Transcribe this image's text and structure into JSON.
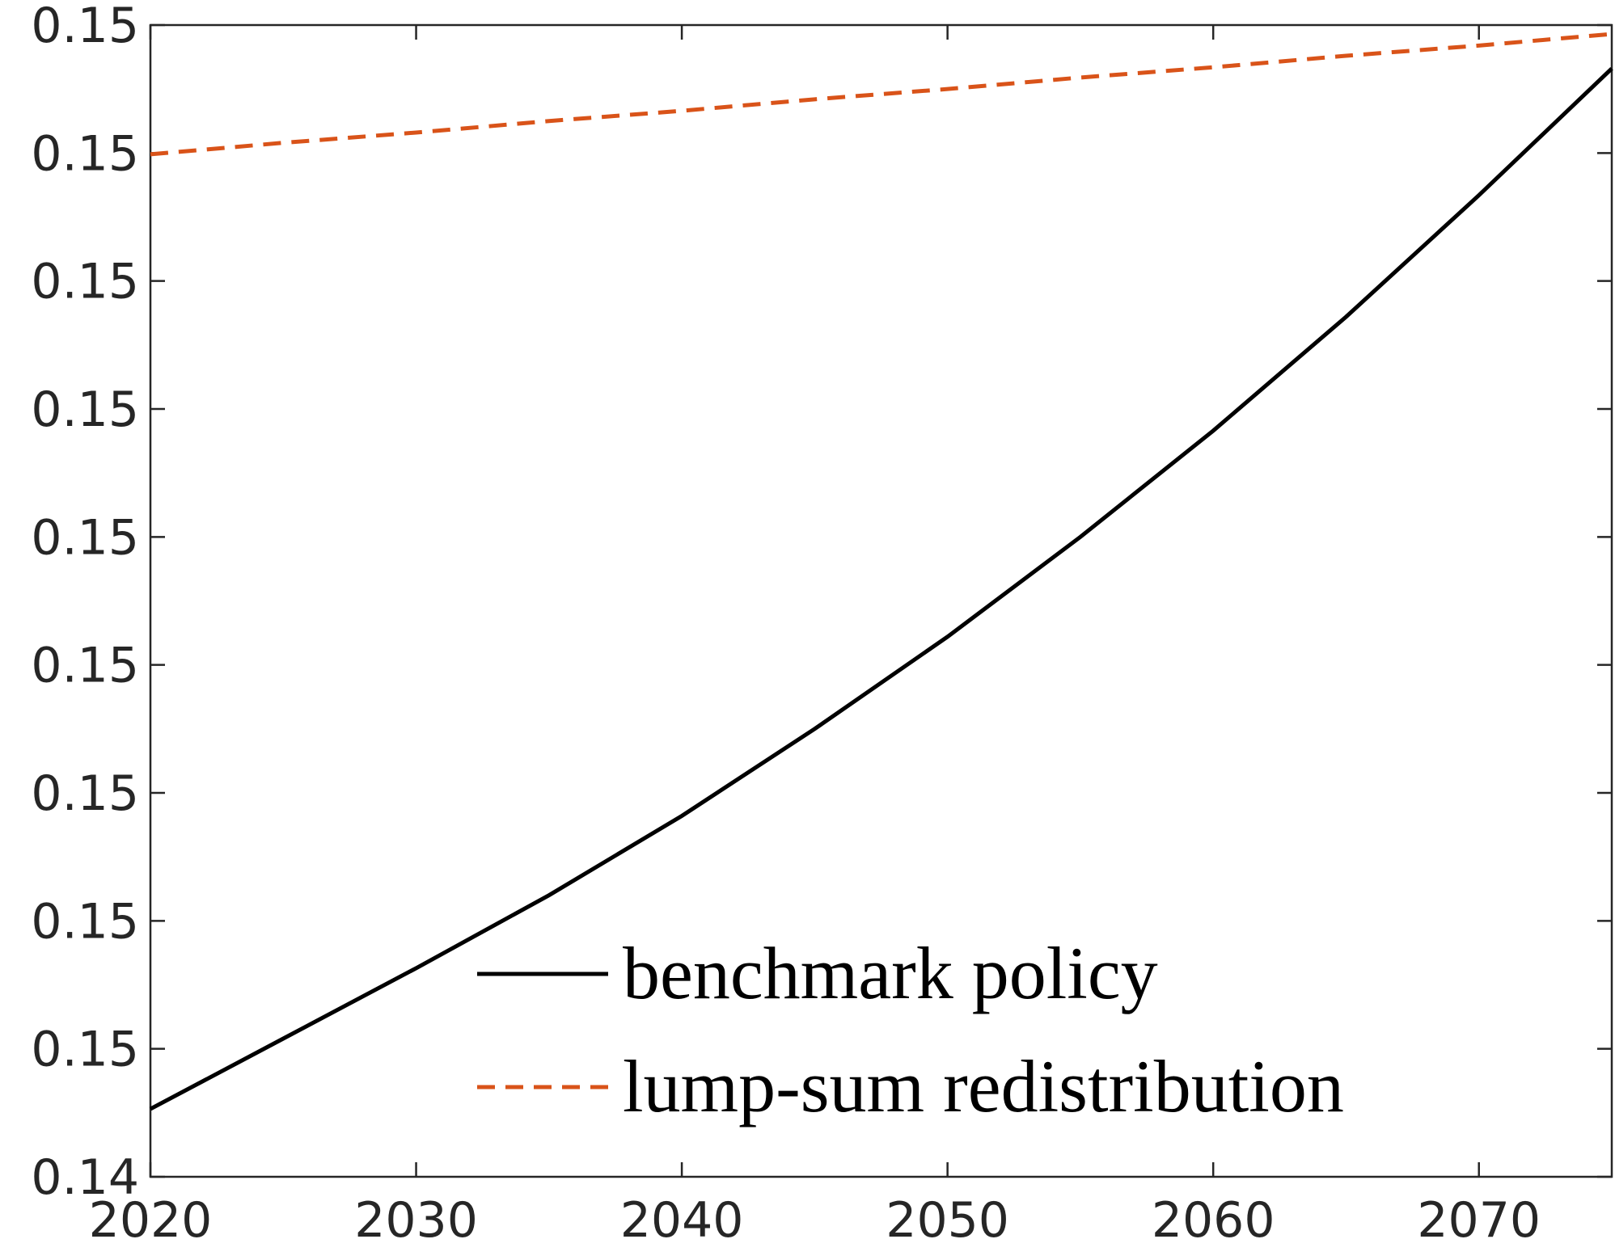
{
  "chart_data": {
    "type": "line",
    "x": [
      2020,
      2025,
      2030,
      2035,
      2040,
      2045,
      2050,
      2055,
      2060,
      2065,
      2070,
      2075
    ],
    "series": [
      {
        "name": "benchmark policy",
        "color": "#000000",
        "dash": false,
        "values": [
          0.14453,
          0.14508,
          0.14563,
          0.1462,
          0.14682,
          0.1475,
          0.14822,
          0.149,
          0.14983,
          0.15072,
          0.15167,
          0.15266
        ]
      },
      {
        "name": "lump-sum redistribution",
        "color": "#d95319",
        "dash": true,
        "values": [
          0.15199,
          0.15208,
          0.15216,
          0.15225,
          0.15233,
          0.15242,
          0.1525,
          0.15259,
          0.15267,
          0.15276,
          0.15284,
          0.15293
        ]
      }
    ],
    "xlim": [
      2020,
      2075
    ],
    "xticks": [
      2020,
      2030,
      2040,
      2050,
      2060,
      2070
    ],
    "ylim": [
      0.144,
      0.153
    ],
    "yticks": [
      {
        "value": 0.144,
        "label": "0.14"
      },
      {
        "value": 0.145,
        "label": "0.15"
      },
      {
        "value": 0.146,
        "label": "0.15"
      },
      {
        "value": 0.147,
        "label": "0.15"
      },
      {
        "value": 0.148,
        "label": "0.15"
      },
      {
        "value": 0.149,
        "label": "0.15"
      },
      {
        "value": 0.15,
        "label": "0.15"
      },
      {
        "value": 0.151,
        "label": "0.15"
      },
      {
        "value": 0.152,
        "label": "0.15"
      },
      {
        "value": 0.153,
        "label": "0.15"
      }
    ],
    "grid": false,
    "legend": "lower right"
  }
}
